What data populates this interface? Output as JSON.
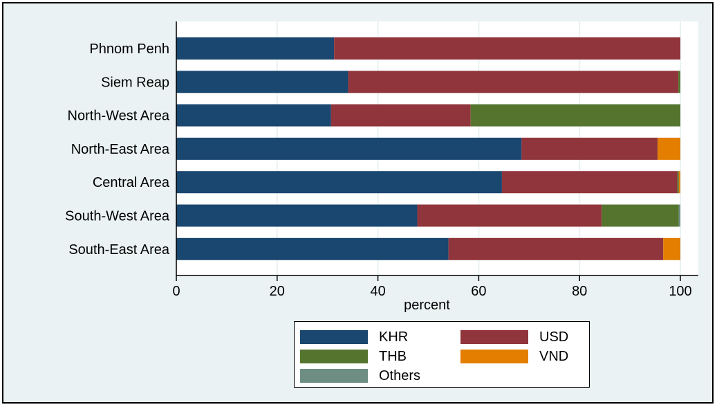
{
  "chart_data": {
    "type": "bar",
    "orientation": "horizontal",
    "stacked": true,
    "categories": [
      "Phnom Penh",
      "Siem Reap",
      "North-West Area",
      "North-East Area",
      "Central Area",
      "South-West Area",
      "South-East Area"
    ],
    "series": [
      {
        "name": "KHR",
        "color": "#1a476f",
        "values": [
          31.3,
          34.1,
          30.7,
          68.5,
          64.6,
          47.8,
          54.0
        ]
      },
      {
        "name": "USD",
        "color": "#90353b",
        "values": [
          68.7,
          65.5,
          27.7,
          27.0,
          34.8,
          36.6,
          42.6
        ]
      },
      {
        "name": "THB",
        "color": "#55752f",
        "values": [
          0.0,
          0.4,
          41.6,
          0.0,
          0.3,
          15.3,
          0.0
        ]
      },
      {
        "name": "VND",
        "color": "#e37e00",
        "values": [
          0.0,
          0.0,
          0.0,
          4.5,
          0.3,
          0.0,
          3.4
        ]
      },
      {
        "name": "Others",
        "color": "#6e8e84",
        "values": [
          0.0,
          0.0,
          0.0,
          0.0,
          0.0,
          0.3,
          0.0
        ]
      }
    ],
    "xlabel": "percent",
    "ylabel": "",
    "xlim": [
      0,
      100
    ],
    "xticks": [
      0,
      20,
      40,
      60,
      80,
      100
    ],
    "grid": true,
    "legend_position": "bottom"
  }
}
